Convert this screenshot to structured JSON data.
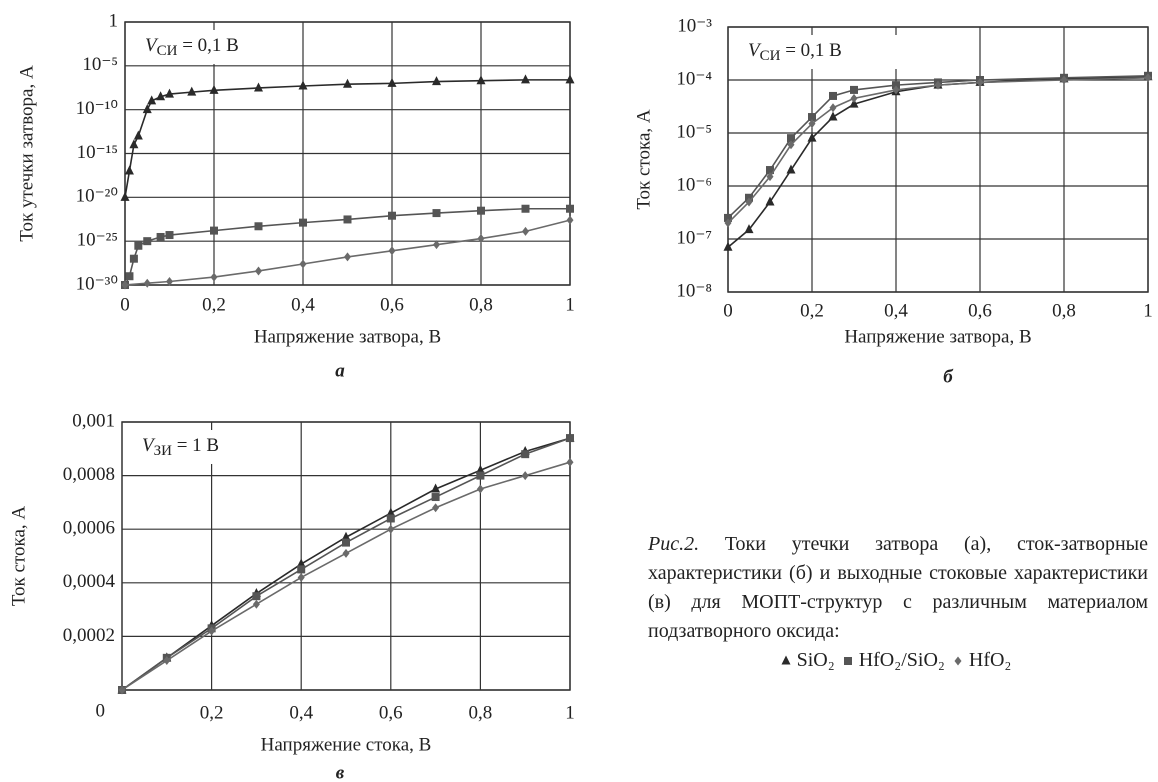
{
  "chart_data": [
    {
      "type": "line",
      "label": "а",
      "ylog": true,
      "grid": true,
      "annotation": {
        "symbol": "V",
        "subscript": "СИ",
        "text": " = 0,1 В"
      },
      "xlabel": "Напряжение затвора, В",
      "ylabel": "Ток утечки затвора, А",
      "xlim": [
        0,
        1
      ],
      "xticks": [
        0,
        {
          "value": 0.2,
          "label": "0,2"
        },
        {
          "value": 0.4,
          "label": "0,4"
        },
        {
          "value": 0.6,
          "label": "0,6"
        },
        {
          "value": 0.8,
          "label": "0,8"
        },
        1
      ],
      "ylim": [
        1e-30,
        1
      ],
      "yticks": [
        {
          "value": 1e-30,
          "label": "10⁻³⁰"
        },
        {
          "value": 1e-25,
          "label": "10⁻²⁵"
        },
        {
          "value": 1e-20,
          "label": "10⁻²⁰"
        },
        {
          "value": 1e-15,
          "label": "10⁻¹⁵"
        },
        {
          "value": 1e-10,
          "label": "10⁻¹⁰"
        },
        {
          "value": 1e-05,
          "label": "10⁻⁵"
        },
        1
      ],
      "series": [
        {
          "name": "SiO₂",
          "marker": "triangle",
          "color": "#2a2a2a",
          "x": [
            0,
            0.01,
            0.02,
            0.03,
            0.05,
            0.06,
            0.08,
            0.1,
            0.15,
            0.2,
            0.3,
            0.4,
            0.5,
            0.6,
            0.7,
            0.8,
            0.9,
            1
          ],
          "values": [
            1e-20,
            1e-17,
            1e-14,
            1e-13,
            1e-10,
            1e-09,
            3e-09,
            6e-09,
            1e-08,
            1.6e-08,
            3e-08,
            5e-08,
            8e-08,
            1e-07,
            1.6e-07,
            2e-07,
            2.5e-07,
            2.5e-07
          ]
        },
        {
          "name": "HfO₂/SiO₂",
          "marker": "square",
          "color": "#555555",
          "x": [
            0,
            0.01,
            0.02,
            0.03,
            0.05,
            0.08,
            0.1,
            0.2,
            0.3,
            0.4,
            0.5,
            0.6,
            0.7,
            0.8,
            0.9,
            1
          ],
          "values": [
            1e-30,
            1e-29,
            1e-27,
            3e-26,
            1e-25,
            3e-25,
            5e-25,
            1.6e-24,
            5e-24,
            1.3e-23,
            3e-23,
            8e-23,
            1.6e-22,
            3e-22,
            5e-22,
            5e-22
          ]
        },
        {
          "name": "HfO₂",
          "marker": "diamond",
          "color": "#6a6a6a",
          "x": [
            0,
            0.05,
            0.1,
            0.2,
            0.3,
            0.4,
            0.5,
            0.6,
            0.7,
            0.8,
            0.9,
            1
          ],
          "values": [
            1e-30,
            1.6e-30,
            2.5e-30,
            8e-30,
            4e-29,
            2.5e-28,
            1.6e-27,
            8e-27,
            4e-26,
            2e-25,
            1.3e-24,
            2.5e-23
          ]
        }
      ]
    },
    {
      "type": "line",
      "label": "б",
      "ylog": true,
      "grid": true,
      "annotation": {
        "symbol": "V",
        "subscript": "СИ",
        "text": " = 0,1 В"
      },
      "xlabel": "Напряжение затвора, В",
      "ylabel": "Ток стока, А",
      "xlim": [
        0,
        1
      ],
      "xticks": [
        0,
        {
          "value": 0.2,
          "label": "0,2"
        },
        {
          "value": 0.4,
          "label": "0,4"
        },
        {
          "value": 0.6,
          "label": "0,6"
        },
        {
          "value": 0.8,
          "label": "0,8"
        },
        1
      ],
      "ylim": [
        1e-08,
        0.001
      ],
      "yticks": [
        {
          "value": 1e-08,
          "label": "10⁻⁸"
        },
        {
          "value": 1e-07,
          "label": "10⁻⁷"
        },
        {
          "value": 1e-06,
          "label": "10⁻⁶"
        },
        {
          "value": 1e-05,
          "label": "10⁻⁵"
        },
        {
          "value": 0.0001,
          "label": "10⁻⁴"
        },
        {
          "value": 0.001,
          "label": "10⁻³"
        }
      ],
      "series": [
        {
          "marker": "triangle",
          "color": "#2a2a2a",
          "x": [
            0,
            0.05,
            0.1,
            0.15,
            0.2,
            0.25,
            0.3,
            0.4,
            0.5,
            0.6,
            0.8,
            1
          ],
          "values": [
            7e-08,
            1.5e-07,
            5e-07,
            2e-06,
            8e-06,
            2e-05,
            3.5e-05,
            6e-05,
            8e-05,
            9e-05,
            0.000105,
            0.000115
          ]
        },
        {
          "marker": "square",
          "color": "#555555",
          "x": [
            0,
            0.05,
            0.1,
            0.15,
            0.2,
            0.25,
            0.3,
            0.4,
            0.5,
            0.6,
            0.8,
            1
          ],
          "values": [
            2.5e-07,
            6e-07,
            2e-06,
            8e-06,
            2e-05,
            5e-05,
            6.5e-05,
            8e-05,
            9e-05,
            0.0001,
            0.00011,
            0.00012
          ]
        },
        {
          "marker": "diamond",
          "color": "#6a6a6a",
          "x": [
            0,
            0.05,
            0.1,
            0.15,
            0.2,
            0.25,
            0.3,
            0.4,
            0.5,
            0.6,
            0.8,
            1
          ],
          "values": [
            2e-07,
            5e-07,
            1.5e-06,
            6e-06,
            1.5e-05,
            3e-05,
            4.5e-05,
            6.5e-05,
            8e-05,
            9e-05,
            0.0001,
            0.00011
          ]
        }
      ]
    },
    {
      "type": "line",
      "label": "в",
      "ylog": false,
      "grid": true,
      "annotation": {
        "symbol": "V",
        "subscript": "ЗИ",
        "text": " = 1 В"
      },
      "xlabel": "Напряжение стока, В",
      "ylabel": "Ток стока, А",
      "xlim": [
        0,
        1
      ],
      "xticks": [
        {
          "value": 0.2,
          "label": "0,2"
        },
        {
          "value": 0.4,
          "label": "0,4"
        },
        {
          "value": 0.6,
          "label": "0,6"
        },
        {
          "value": 0.8,
          "label": "0,8"
        },
        1
      ],
      "ylim": [
        0,
        0.001
      ],
      "yticks": [
        0,
        {
          "value": 0.0002,
          "label": "0,0002"
        },
        {
          "value": 0.0004,
          "label": "0,0004"
        },
        {
          "value": 0.0006,
          "label": "0,0006"
        },
        {
          "value": 0.0008,
          "label": "0,0008"
        },
        {
          "value": 0.001,
          "label": "0,001"
        }
      ],
      "series": [
        {
          "marker": "triangle",
          "color": "#2a2a2a",
          "x": [
            0,
            0.1,
            0.2,
            0.3,
            0.4,
            0.5,
            0.6,
            0.7,
            0.8,
            0.9,
            1
          ],
          "values": [
            0,
            0.00012,
            0.00024,
            0.00036,
            0.00047,
            0.00057,
            0.00066,
            0.00075,
            0.00082,
            0.00089,
            0.00094
          ]
        },
        {
          "marker": "square",
          "color": "#555555",
          "x": [
            0,
            0.1,
            0.2,
            0.3,
            0.4,
            0.5,
            0.6,
            0.7,
            0.8,
            0.9,
            1
          ],
          "values": [
            0,
            0.00012,
            0.00023,
            0.00035,
            0.00045,
            0.00055,
            0.00064,
            0.00072,
            0.0008,
            0.00088,
            0.00094
          ]
        },
        {
          "marker": "diamond",
          "color": "#6a6a6a",
          "x": [
            0,
            0.1,
            0.2,
            0.3,
            0.4,
            0.5,
            0.6,
            0.7,
            0.8,
            0.9,
            1
          ],
          "values": [
            0,
            0.00011,
            0.00022,
            0.00032,
            0.00042,
            0.00051,
            0.0006,
            0.00068,
            0.00075,
            0.0008,
            0.00085
          ]
        }
      ]
    }
  ],
  "caption": {
    "lead": "Рис.2.",
    "text": "Токи утечки затвора (а), сток-затворные характеристики (б) и выходные стоковые характеристики (в) для МОПТ-структур с различным материалом подзатворного оксида:"
  }
}
